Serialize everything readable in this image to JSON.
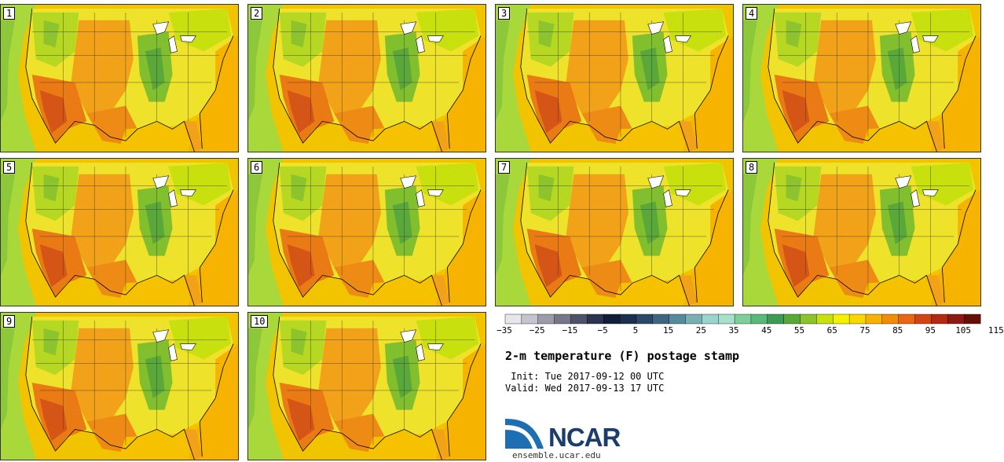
{
  "panels": [
    {
      "label": "1"
    },
    {
      "label": "2"
    },
    {
      "label": "3"
    },
    {
      "label": "4"
    },
    {
      "label": "5"
    },
    {
      "label": "6"
    },
    {
      "label": "7"
    },
    {
      "label": "8"
    },
    {
      "label": "9"
    },
    {
      "label": "10"
    }
  ],
  "colorbar": {
    "tick_labels": [
      "−35",
      "−25",
      "−15",
      "−5",
      "5",
      "15",
      "25",
      "35",
      "45",
      "55",
      "65",
      "75",
      "85",
      "95",
      "105",
      "115"
    ],
    "colors": [
      "#e6e6eb",
      "#c4c4cf",
      "#9b9bab",
      "#767688",
      "#4e5268",
      "#2c3350",
      "#121d38",
      "#1c2f4f",
      "#2b4866",
      "#3e6680",
      "#578a9a",
      "#79b0b4",
      "#9bd3cf",
      "#a9e0cc",
      "#7fcf9b",
      "#58b97a",
      "#3e9b55",
      "#5aa83a",
      "#8dc32c",
      "#c8e00d",
      "#f2f200",
      "#f9d800",
      "#f6b400",
      "#f28d08",
      "#ea6612",
      "#d24414",
      "#b52912",
      "#8c1a10",
      "#651007"
    ]
  },
  "title": "2-m temperature (F) postage stamp",
  "init_line": " Init: Tue 2017-09-12 00 UTC",
  "valid_line": "Valid: Wed 2017-09-13 17 UTC",
  "logo": {
    "text": "NCAR",
    "url": "ensemble.ucar.edu"
  }
}
